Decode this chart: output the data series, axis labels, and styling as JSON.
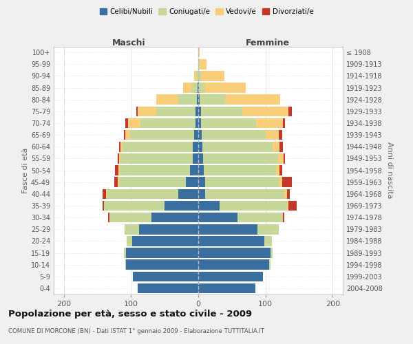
{
  "age_groups": [
    "0-4",
    "5-9",
    "10-14",
    "15-19",
    "20-24",
    "25-29",
    "30-34",
    "35-39",
    "40-44",
    "45-49",
    "50-54",
    "55-59",
    "60-64",
    "65-69",
    "70-74",
    "75-79",
    "80-84",
    "85-89",
    "90-94",
    "95-99",
    "100+"
  ],
  "birth_years": [
    "2004-2008",
    "1999-2003",
    "1994-1998",
    "1989-1993",
    "1984-1988",
    "1979-1983",
    "1974-1978",
    "1969-1973",
    "1964-1968",
    "1959-1963",
    "1954-1958",
    "1949-1953",
    "1944-1948",
    "1939-1943",
    "1934-1938",
    "1929-1933",
    "1924-1928",
    "1919-1923",
    "1914-1918",
    "1909-1913",
    "≤ 1908"
  ],
  "colors": {
    "celibi": "#3a6e9f",
    "coniugati": "#c5d89a",
    "vedovi": "#f8ce7a",
    "divorziati": "#c0392b"
  },
  "males": {
    "celibi": [
      90,
      97,
      107,
      108,
      98,
      88,
      70,
      50,
      30,
      18,
      12,
      8,
      8,
      6,
      4,
      4,
      2,
      1,
      0,
      0,
      0
    ],
    "coniugati": [
      0,
      0,
      2,
      3,
      8,
      22,
      62,
      90,
      105,
      100,
      105,
      108,
      105,
      95,
      82,
      58,
      28,
      8,
      2,
      0,
      0
    ],
    "vedovi": [
      0,
      0,
      0,
      0,
      0,
      0,
      0,
      0,
      2,
      2,
      2,
      2,
      3,
      8,
      18,
      28,
      32,
      14,
      4,
      0,
      0
    ],
    "divorziati": [
      0,
      0,
      0,
      0,
      0,
      0,
      2,
      2,
      5,
      5,
      5,
      2,
      2,
      2,
      5,
      2,
      0,
      0,
      0,
      0,
      0
    ]
  },
  "females": {
    "nubili": [
      85,
      96,
      105,
      107,
      98,
      88,
      58,
      32,
      10,
      10,
      8,
      7,
      6,
      5,
      4,
      4,
      2,
      1,
      0,
      0,
      0
    ],
    "coniugate": [
      0,
      0,
      2,
      4,
      12,
      32,
      68,
      100,
      118,
      110,
      108,
      112,
      105,
      95,
      82,
      62,
      38,
      8,
      4,
      2,
      0
    ],
    "vedove": [
      0,
      0,
      0,
      0,
      0,
      0,
      0,
      2,
      4,
      5,
      5,
      8,
      10,
      20,
      40,
      68,
      82,
      62,
      35,
      10,
      2
    ],
    "divorziate": [
      0,
      0,
      0,
      0,
      0,
      0,
      2,
      12,
      4,
      14,
      4,
      2,
      5,
      5,
      3,
      5,
      0,
      0,
      0,
      0,
      0
    ]
  },
  "xlim": 215,
  "title": "Popolazione per età, sesso e stato civile - 2009",
  "subtitle": "COMUNE DI MORCONE (BN) - Dati ISTAT 1° gennaio 2009 - Elaborazione TUTTITALIA.IT",
  "xlabel_left": "Maschi",
  "xlabel_right": "Femmine",
  "ylabel": "Fasce di età",
  "ylabel_right": "Anni di nascita",
  "bg_color": "#f0f0f0",
  "plot_bg": "#ffffff"
}
